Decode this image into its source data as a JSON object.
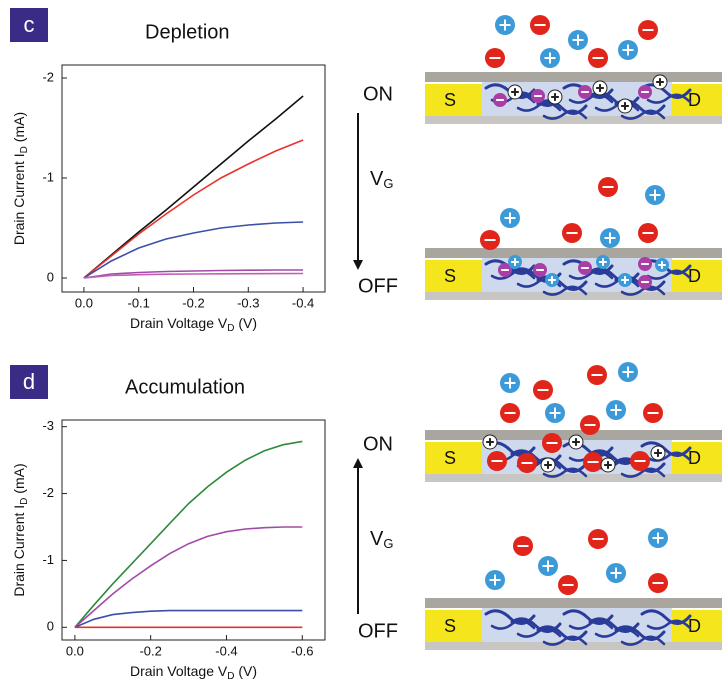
{
  "chart_data": [
    {
      "type": "line",
      "panel": "c",
      "title": "Depletion",
      "xlabel": [
        "Drain Voltage V",
        "D",
        " (V)"
      ],
      "ylabel": [
        "Drain Current I",
        "D",
        " (mA)"
      ],
      "annotations": {
        "top": "ON",
        "bottom": "OFF",
        "gate": [
          "V",
          "G"
        ]
      },
      "x": [
        0,
        -0.05,
        -0.1,
        -0.15,
        -0.2,
        -0.25,
        -0.3,
        -0.35,
        -0.4
      ],
      "xlim": [
        0.04,
        -0.44
      ],
      "xticks": [
        {
          "value": 0,
          "label": "0.0"
        },
        -0.1,
        -0.2,
        -0.3,
        -0.4
      ],
      "ylim": [
        0.14,
        -2.13
      ],
      "yticks": [
        0,
        -1,
        -2
      ],
      "series": [
        {
          "color": "#111111",
          "values": [
            0,
            -0.23,
            -0.46,
            -0.68,
            -0.91,
            -1.14,
            -1.37,
            -1.59,
            -1.82
          ]
        },
        {
          "color": "#e8332c",
          "values": [
            0,
            -0.22,
            -0.44,
            -0.64,
            -0.83,
            -1.0,
            -1.14,
            -1.27,
            -1.38
          ]
        },
        {
          "color": "#3b4fa8",
          "values": [
            0,
            -0.17,
            -0.3,
            -0.39,
            -0.45,
            -0.5,
            -0.53,
            -0.55,
            -0.56
          ]
        },
        {
          "color": "#a34aa8",
          "values": [
            0,
            -0.04,
            -0.055,
            -0.065,
            -0.07,
            -0.075,
            -0.078,
            -0.08,
            -0.08
          ]
        },
        {
          "color": "#c05fb8",
          "values": [
            0,
            -0.025,
            -0.033,
            -0.038,
            -0.04,
            -0.042,
            -0.043,
            -0.044,
            -0.045
          ]
        }
      ]
    },
    {
      "type": "line",
      "panel": "d",
      "title": "Accumulation",
      "xlabel": [
        "Drain Voltage V",
        "D",
        " (V)"
      ],
      "ylabel": [
        "Drain Current I",
        "D",
        " (mA)"
      ],
      "annotations": {
        "top": "ON",
        "bottom": "OFF",
        "gate": [
          "V",
          "G"
        ]
      },
      "x": [
        0,
        -0.05,
        -0.1,
        -0.15,
        -0.2,
        -0.25,
        -0.3,
        -0.35,
        -0.4,
        -0.45,
        -0.5,
        -0.55,
        -0.6
      ],
      "xlim": [
        0.034,
        -0.66
      ],
      "xticks": [
        {
          "value": 0,
          "label": "0.0"
        },
        -0.2,
        -0.4,
        -0.6
      ],
      "ylim": [
        0.19,
        -3.1
      ],
      "yticks": [
        0,
        -1,
        -2,
        -3
      ],
      "series": [
        {
          "color": "#2e8b3a",
          "values": [
            0,
            -0.33,
            -0.65,
            -0.95,
            -1.25,
            -1.55,
            -1.85,
            -2.1,
            -2.32,
            -2.5,
            -2.64,
            -2.73,
            -2.78
          ]
        },
        {
          "color": "#a34aa8",
          "values": [
            0,
            -0.25,
            -0.5,
            -0.72,
            -0.92,
            -1.1,
            -1.25,
            -1.36,
            -1.43,
            -1.47,
            -1.49,
            -1.5,
            -1.5
          ]
        },
        {
          "color": "#3b4fa8",
          "values": [
            0,
            -0.12,
            -0.19,
            -0.22,
            -0.24,
            -0.25,
            -0.25,
            -0.25,
            -0.25,
            -0.25,
            -0.25,
            -0.25,
            -0.25
          ]
        },
        {
          "color": "#e8332c",
          "values": [
            0,
            0,
            0,
            0,
            0,
            0,
            0,
            0,
            0,
            0,
            0,
            0,
            0
          ]
        }
      ]
    }
  ],
  "diagram_labels": {
    "source": "S",
    "drain": "D"
  }
}
